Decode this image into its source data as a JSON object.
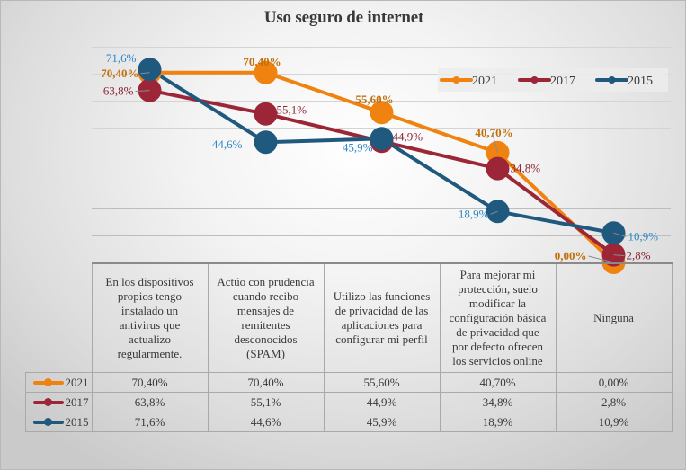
{
  "chart_data": {
    "type": "line",
    "title": "Uso seguro de internet",
    "xlabel": "",
    "ylabel": "",
    "ylim": [
      0,
      80
    ],
    "grid": true,
    "legend_position": "top-right",
    "categories": [
      "En los dispositivos propios tengo instalado un antivirus que actualizo regularmente.",
      "Actúo con prudencia cuando recibo mensajes de remitentes desconocidos (SPAM)",
      "Utilizo las funciones de privacidad de las aplicaciones para configurar mi perfil",
      "Para mejorar mi protección, suelo modificar la configuración básica de privacidad que por defecto ofrecen los servicios online",
      "Ninguna"
    ],
    "category_lines": [
      [
        "En los dispositivos",
        "propios tengo",
        "instalado un",
        "antivirus que",
        "actualizo",
        "regularmente."
      ],
      [
        "Actúo con prudencia",
        "cuando recibo",
        "mensajes de",
        "remitentes",
        "desconocidos",
        "(SPAM)"
      ],
      [
        "Utilizo las funciones",
        "de privacidad de las",
        "aplicaciones para",
        "configurar mi perfil"
      ],
      [
        "Para mejorar mi",
        "protección, suelo",
        "modificar la",
        "configuración básica",
        "de privacidad que",
        "por defecto ofrecen",
        "los servicios online"
      ],
      [
        "Ninguna"
      ]
    ],
    "series": [
      {
        "name": "2021",
        "color": "#f0820f",
        "values": [
          70.4,
          70.4,
          55.6,
          40.7,
          0.0
        ],
        "labels": [
          "70,40%",
          "70,40%",
          "55,60%",
          "40,70%",
          "0,00%"
        ]
      },
      {
        "name": "2017",
        "color": "#9c2637",
        "values": [
          63.8,
          55.1,
          44.9,
          34.8,
          2.8
        ],
        "labels": [
          "63,8%",
          "55,1%",
          "44,9%",
          "34,8%",
          "2,8%"
        ]
      },
      {
        "name": "2015",
        "color": "#1f5a7e",
        "values": [
          71.6,
          44.6,
          45.9,
          18.9,
          10.9
        ],
        "labels": [
          "71,6%",
          "44,6%",
          "45,9%",
          "18,9%",
          "10,9%"
        ]
      }
    ],
    "data_table": true
  }
}
